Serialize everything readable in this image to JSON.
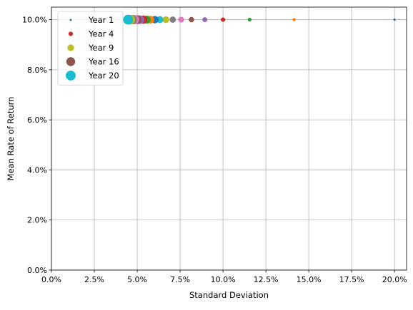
{
  "chart_data": {
    "type": "scatter",
    "xlabel": "Standard Deviation",
    "ylabel": "Mean Rate of Return",
    "xlim": [
      0,
      0.207
    ],
    "ylim": [
      0,
      0.105
    ],
    "xticks": [
      0,
      0.025,
      0.05,
      0.075,
      0.1,
      0.125,
      0.15,
      0.175,
      0.2
    ],
    "xtick_labels": [
      "0.0%",
      "2.5%",
      "5.0%",
      "7.5%",
      "10.0%",
      "12.5%",
      "15.0%",
      "17.5%",
      "20.0%"
    ],
    "yticks": [
      0,
      0.02,
      0.04,
      0.06,
      0.08,
      0.1
    ],
    "ytick_labels": [
      "0.0%",
      "2.0%",
      "4.0%",
      "6.0%",
      "8.0%",
      "10.0%"
    ],
    "grid": true,
    "legend_position": "top-left",
    "legend_entries": [
      "Year 1",
      "Year 4",
      "Year 9",
      "Year 16",
      "Year 20"
    ],
    "series": [
      {
        "name": "Year 1",
        "year": 1,
        "x": 0.2,
        "y": 0.1,
        "color": "#1f77b4"
      },
      {
        "year": 2,
        "x": 0.1414,
        "y": 0.1,
        "color": "#ff7f0e"
      },
      {
        "year": 3,
        "x": 0.1155,
        "y": 0.1,
        "color": "#2ca02c"
      },
      {
        "name": "Year 4",
        "year": 4,
        "x": 0.1,
        "y": 0.1,
        "color": "#d62728"
      },
      {
        "year": 5,
        "x": 0.0894,
        "y": 0.1,
        "color": "#9467bd"
      },
      {
        "year": 6,
        "x": 0.0816,
        "y": 0.1,
        "color": "#8c564b"
      },
      {
        "year": 7,
        "x": 0.0756,
        "y": 0.1,
        "color": "#e377c2"
      },
      {
        "year": 8,
        "x": 0.0707,
        "y": 0.1,
        "color": "#7f7f7f"
      },
      {
        "name": "Year 9",
        "year": 9,
        "x": 0.0667,
        "y": 0.1,
        "color": "#bcbd22"
      },
      {
        "year": 10,
        "x": 0.0632,
        "y": 0.1,
        "color": "#17becf"
      },
      {
        "year": 11,
        "x": 0.0603,
        "y": 0.1,
        "color": "#1f77b4"
      },
      {
        "year": 12,
        "x": 0.0577,
        "y": 0.1,
        "color": "#ff7f0e"
      },
      {
        "year": 13,
        "x": 0.0555,
        "y": 0.1,
        "color": "#2ca02c"
      },
      {
        "year": 14,
        "x": 0.0535,
        "y": 0.1,
        "color": "#d62728"
      },
      {
        "year": 15,
        "x": 0.0516,
        "y": 0.1,
        "color": "#9467bd"
      },
      {
        "name": "Year 16",
        "year": 16,
        "x": 0.05,
        "y": 0.1,
        "color": "#8c564b"
      },
      {
        "year": 17,
        "x": 0.0485,
        "y": 0.1,
        "color": "#e377c2"
      },
      {
        "year": 18,
        "x": 0.0471,
        "y": 0.1,
        "color": "#7f7f7f"
      },
      {
        "year": 19,
        "x": 0.0459,
        "y": 0.1,
        "color": "#bcbd22"
      },
      {
        "name": "Year 20",
        "year": 20,
        "x": 0.0447,
        "y": 0.1,
        "color": "#17becf"
      }
    ]
  }
}
